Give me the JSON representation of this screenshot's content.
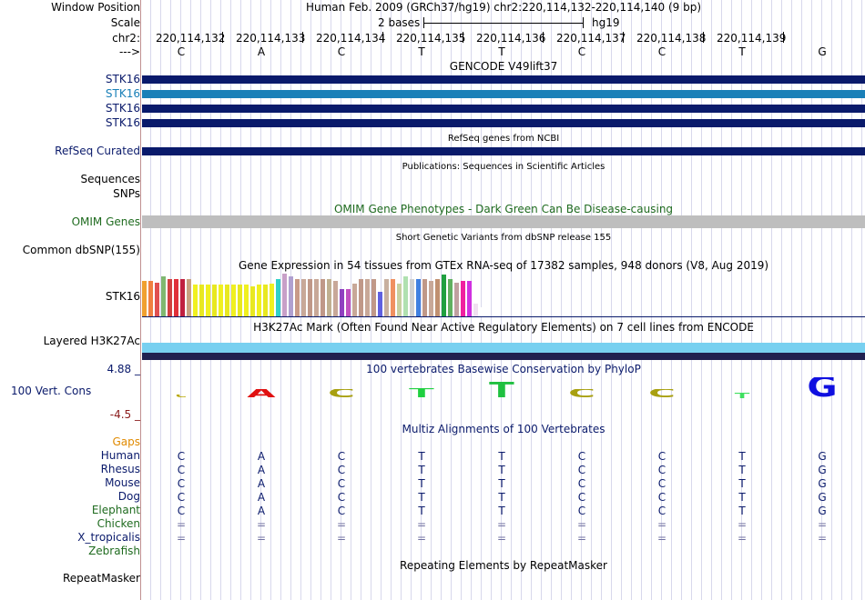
{
  "header": {
    "window_position_label": "Window Position",
    "assembly_text": "Human Feb. 2009 (GRCh37/hg19)   chr2:220,114,132-220,114,140 (9 bp)",
    "scale_label": "Scale",
    "scale_text": "2 bases",
    "scale_db": "hg19",
    "chrom_label": "chr2:",
    "strand_label": "--->",
    "positions": [
      "220,114,132",
      "220,114,133",
      "220,114,134",
      "220,114,135",
      "220,114,136",
      "220,114,137",
      "220,114,138",
      "220,114,139"
    ],
    "bases": [
      "C",
      "A",
      "C",
      "T",
      "T",
      "C",
      "C",
      "T",
      "G"
    ]
  },
  "gencode": {
    "title": "GENCODE V49lift37",
    "rows": [
      "STK16",
      "STK16",
      "STK16",
      "STK16"
    ],
    "colors": [
      "#0a1a6b",
      "#1a80b8",
      "#0a1a6b",
      "#0a1a6b"
    ]
  },
  "refseq": {
    "label": "RefSeq Curated",
    "title": "RefSeq genes from NCBI",
    "color": "#0a1a6b"
  },
  "publications": {
    "title": "Publications: Sequences in Scientific Articles",
    "sequences_label": "Sequences",
    "snps_label": "SNPs"
  },
  "omim": {
    "label": "OMIM Genes",
    "title": "OMIM Gene Phenotypes - Dark Green Can Be Disease-causing",
    "color": "#bebebe",
    "text_color": "#1f6b1f"
  },
  "dbsnp": {
    "label": "Common dbSNP(155)",
    "title": "Short Genetic Variants from dbSNP release 155"
  },
  "gtex": {
    "label": "STK16",
    "title": "Gene Expression in 54 tissues from GTEx RNA-seq of 17382 samples, 948 donors (V8, Aug 2019)",
    "bars": [
      {
        "c": "#f0a030",
        "v": 0.82
      },
      {
        "c": "#f08040",
        "v": 0.82
      },
      {
        "c": "#e05050",
        "v": 0.78
      },
      {
        "c": "#80b870",
        "v": 0.92
      },
      {
        "c": "#d04040",
        "v": 0.86
      },
      {
        "c": "#e0303a",
        "v": 0.86
      },
      {
        "c": "#c02040",
        "v": 0.86
      },
      {
        "c": "#c8a080",
        "v": 0.86
      },
      {
        "c": "#f0f020",
        "v": 0.72
      },
      {
        "c": "#e8e820",
        "v": 0.72
      },
      {
        "c": "#f0f020",
        "v": 0.72
      },
      {
        "c": "#e8e820",
        "v": 0.72
      },
      {
        "c": "#f0f020",
        "v": 0.72
      },
      {
        "c": "#e8e820",
        "v": 0.72
      },
      {
        "c": "#f0f020",
        "v": 0.72
      },
      {
        "c": "#e8e820",
        "v": 0.72
      },
      {
        "c": "#f0f020",
        "v": 0.72
      },
      {
        "c": "#e8e820",
        "v": 0.68
      },
      {
        "c": "#f0f020",
        "v": 0.72
      },
      {
        "c": "#e8e820",
        "v": 0.72
      },
      {
        "c": "#f0f020",
        "v": 0.74
      },
      {
        "c": "#30d0c8",
        "v": 0.86
      },
      {
        "c": "#c8a0c8",
        "v": 0.98
      },
      {
        "c": "#b0a0d0",
        "v": 0.92
      },
      {
        "c": "#c89a88",
        "v": 0.86
      },
      {
        "c": "#c8a898",
        "v": 0.86
      },
      {
        "c": "#c09888",
        "v": 0.86
      },
      {
        "c": "#c8a898",
        "v": 0.86
      },
      {
        "c": "#c09888",
        "v": 0.86
      },
      {
        "c": "#c0b090",
        "v": 0.86
      },
      {
        "c": "#c8a898",
        "v": 0.82
      },
      {
        "c": "#9040c0",
        "v": 0.62
      },
      {
        "c": "#c050c0",
        "v": 0.62
      },
      {
        "c": "#c8a898",
        "v": 0.76
      },
      {
        "c": "#c09888",
        "v": 0.86
      },
      {
        "c": "#c8a898",
        "v": 0.86
      },
      {
        "c": "#c09888",
        "v": 0.86
      },
      {
        "c": "#6060e0",
        "v": 0.56
      },
      {
        "c": "#c8b0a0",
        "v": 0.86
      },
      {
        "c": "#f09060",
        "v": 0.86
      },
      {
        "c": "#c8d0a0",
        "v": 0.76
      },
      {
        "c": "#b0e0b0",
        "v": 0.92
      },
      {
        "c": "#d0d0d0",
        "v": 0.86
      },
      {
        "c": "#4080e0",
        "v": 0.86
      },
      {
        "c": "#c09888",
        "v": 0.86
      },
      {
        "c": "#c8a898",
        "v": 0.82
      },
      {
        "c": "#c09070",
        "v": 0.86
      },
      {
        "c": "#20a040",
        "v": 0.96
      },
      {
        "c": "#60b060",
        "v": 0.86
      },
      {
        "c": "#c0a0a0",
        "v": 0.78
      },
      {
        "c": "#f020a0",
        "v": 0.82
      },
      {
        "c": "#d030e0",
        "v": 0.82
      },
      {
        "c": "#f0e0f0",
        "v": 0.3
      },
      {
        "c": "#ffffff",
        "v": 0.2
      }
    ]
  },
  "h3k27ac": {
    "label": "Layered H3K27Ac",
    "title": "H3K27Ac Mark (Often Found Near Active Regulatory Elements) on 7 cell lines from ENCODE",
    "color_light": "#78d0f0",
    "color_dark": "#202050"
  },
  "conservation": {
    "label": "100 Vert. Cons",
    "title": "100 vertebrates Basewise Conservation by PhyloP",
    "ymax": "4.88 _",
    "ymin": "-4.5 _",
    "letters": [
      {
        "b": "C",
        "c": "#b8a800",
        "h": 0.12
      },
      {
        "b": "A",
        "c": "#e01010",
        "h": 0.55
      },
      {
        "b": "C",
        "c": "#a8a010",
        "h": 0.55
      },
      {
        "b": "T",
        "c": "#20d040",
        "h": 0.62
      },
      {
        "b": "T",
        "c": "#20c040",
        "h": 1.0
      },
      {
        "b": "C",
        "c": "#a8a010",
        "h": 0.55
      },
      {
        "b": "C",
        "c": "#a8a010",
        "h": 0.55
      },
      {
        "b": "T",
        "c": "#40e060",
        "h": 0.35
      },
      {
        "b": "G",
        "c": "#1010e0",
        "h": 1.3
      }
    ]
  },
  "multiz": {
    "title": "Multiz Alignments of 100 Vertebrates",
    "gaps_label": "Gaps",
    "species": [
      {
        "name": "Human",
        "bases": [
          "C",
          "A",
          "C",
          "T",
          "T",
          "C",
          "C",
          "T",
          "G"
        ],
        "color": "#0a1a6b"
      },
      {
        "name": "Rhesus",
        "bases": [
          "C",
          "A",
          "C",
          "T",
          "T",
          "C",
          "C",
          "T",
          "G"
        ],
        "color": "#0a1a6b"
      },
      {
        "name": "Mouse",
        "bases": [
          "C",
          "A",
          "C",
          "T",
          "T",
          "C",
          "C",
          "T",
          "G"
        ],
        "color": "#0a1a6b"
      },
      {
        "name": "Dog",
        "bases": [
          "C",
          "A",
          "C",
          "T",
          "T",
          "C",
          "C",
          "T",
          "G"
        ],
        "color": "#0a1a6b"
      },
      {
        "name": "Elephant",
        "bases": [
          "C",
          "A",
          "C",
          "T",
          "T",
          "C",
          "C",
          "T",
          "G"
        ],
        "color": "#1f6b1f"
      },
      {
        "name": "Chicken",
        "bases": [
          "=",
          "=",
          "=",
          "=",
          "=",
          "=",
          "=",
          "=",
          "="
        ],
        "color": "#1f6b1f"
      },
      {
        "name": "X_tropicalis",
        "bases": [
          "=",
          "=",
          "=",
          "=",
          "=",
          "=",
          "=",
          "=",
          "="
        ],
        "color": "#0a1a6b"
      },
      {
        "name": "Zebrafish",
        "bases": [
          "",
          "",
          "",
          "",
          "",
          "",
          "",
          "",
          ""
        ],
        "color": "#1f6b1f"
      }
    ]
  },
  "repeatmasker": {
    "label": "RepeatMasker",
    "title": "Repeating Elements by RepeatMasker"
  }
}
